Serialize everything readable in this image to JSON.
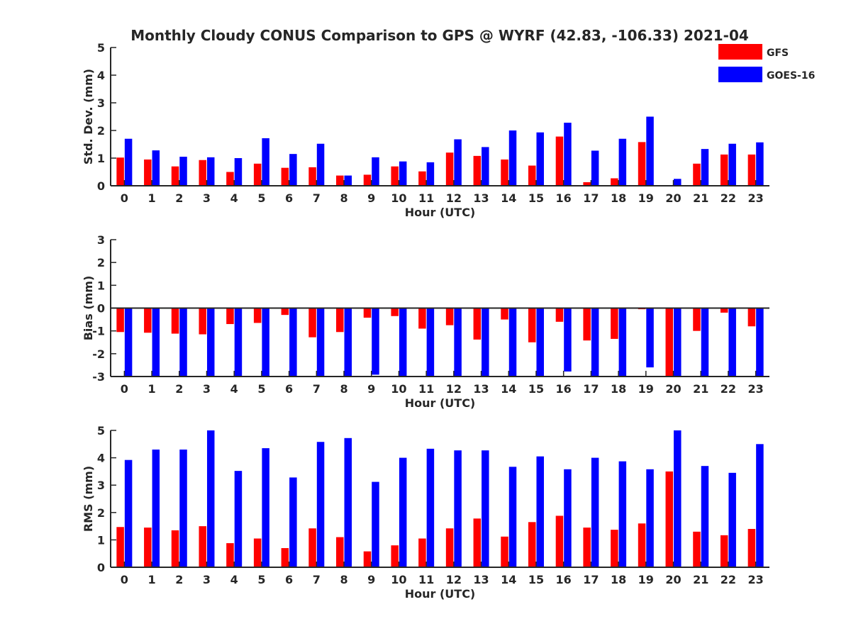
{
  "title": "Monthly Cloudy CONUS Comparison to GPS @ WYRF (42.83, -106.33) 2021-04",
  "colors": {
    "GFS": "#ff0000",
    "GOES-16": "#0000ff",
    "axis": "#262626"
  },
  "legend": {
    "placement": "top-right",
    "entries": [
      "GFS",
      "GOES-16"
    ]
  },
  "chart_data": [
    {
      "type": "bar",
      "categories": [
        "0",
        "1",
        "2",
        "3",
        "4",
        "5",
        "6",
        "7",
        "8",
        "9",
        "10",
        "11",
        "12",
        "13",
        "14",
        "15",
        "16",
        "17",
        "18",
        "19",
        "20",
        "21",
        "22",
        "23"
      ],
      "xlabel": "Hour (UTC)",
      "ylabel": "Std. Dev. (mm)",
      "ylim": [
        0,
        5
      ],
      "yticks": [
        0,
        1,
        2,
        3,
        4,
        5
      ],
      "series": [
        {
          "name": "GFS",
          "values": [
            1.02,
            0.95,
            0.7,
            0.93,
            0.5,
            0.8,
            0.65,
            0.67,
            0.37,
            0.4,
            0.7,
            0.52,
            1.2,
            1.08,
            0.95,
            0.73,
            1.78,
            0.13,
            0.27,
            1.58,
            0.0,
            0.8,
            1.13,
            1.13
          ]
        },
        {
          "name": "GOES-16",
          "values": [
            1.7,
            1.28,
            1.05,
            1.03,
            1.0,
            1.72,
            1.15,
            1.52,
            0.37,
            1.03,
            0.88,
            0.85,
            1.68,
            1.4,
            2.0,
            1.93,
            2.28,
            1.27,
            1.7,
            2.5,
            0.25,
            1.33,
            1.52,
            1.57
          ]
        }
      ]
    },
    {
      "type": "bar",
      "categories": [
        "0",
        "1",
        "2",
        "3",
        "4",
        "5",
        "6",
        "7",
        "8",
        "9",
        "10",
        "11",
        "12",
        "13",
        "14",
        "15",
        "16",
        "17",
        "18",
        "19",
        "20",
        "21",
        "22",
        "23"
      ],
      "xlabel": "Hour (UTC)",
      "ylabel": "Bias (mm)",
      "ylim": [
        -3,
        3
      ],
      "yticks": [
        -3,
        -2,
        -1,
        0,
        1,
        2,
        3
      ],
      "series": [
        {
          "name": "GFS",
          "values": [
            -1.05,
            -1.08,
            -1.12,
            -1.15,
            -0.7,
            -0.65,
            -0.3,
            -1.28,
            -1.05,
            -0.42,
            -0.35,
            -0.9,
            -0.75,
            -1.38,
            -0.5,
            -1.5,
            -0.6,
            -1.42,
            -1.35,
            -0.05,
            -3.0,
            -1.0,
            -0.2,
            -0.8
          ]
        },
        {
          "name": "GOES-16",
          "values": [
            -3.0,
            -3.0,
            -3.0,
            -3.0,
            -3.0,
            -3.0,
            -3.0,
            -3.0,
            -3.0,
            -2.92,
            -3.0,
            -3.0,
            -3.0,
            -3.0,
            -3.0,
            -3.0,
            -2.78,
            -3.0,
            -3.0,
            -2.6,
            -3.0,
            -3.0,
            -3.0,
            -3.0
          ]
        }
      ]
    },
    {
      "type": "bar",
      "categories": [
        "0",
        "1",
        "2",
        "3",
        "4",
        "5",
        "6",
        "7",
        "8",
        "9",
        "10",
        "11",
        "12",
        "13",
        "14",
        "15",
        "16",
        "17",
        "18",
        "19",
        "20",
        "21",
        "22",
        "23"
      ],
      "xlabel": "Hour (UTC)",
      "ylabel": "RMS (mm)",
      "ylim": [
        0,
        5
      ],
      "yticks": [
        0,
        1,
        2,
        3,
        4,
        5
      ],
      "series": [
        {
          "name": "GFS",
          "values": [
            1.47,
            1.45,
            1.35,
            1.5,
            0.88,
            1.05,
            0.7,
            1.42,
            1.1,
            0.58,
            0.8,
            1.05,
            1.42,
            1.78,
            1.12,
            1.65,
            1.88,
            1.45,
            1.37,
            1.6,
            3.5,
            1.3,
            1.17,
            1.4
          ]
        },
        {
          "name": "GOES-16",
          "values": [
            3.92,
            4.3,
            4.3,
            5.0,
            3.52,
            4.35,
            3.28,
            4.58,
            4.72,
            3.12,
            4.0,
            4.33,
            4.27,
            4.27,
            3.67,
            4.05,
            3.58,
            4.0,
            3.87,
            3.58,
            5.0,
            3.7,
            3.45,
            4.5
          ]
        }
      ]
    }
  ]
}
